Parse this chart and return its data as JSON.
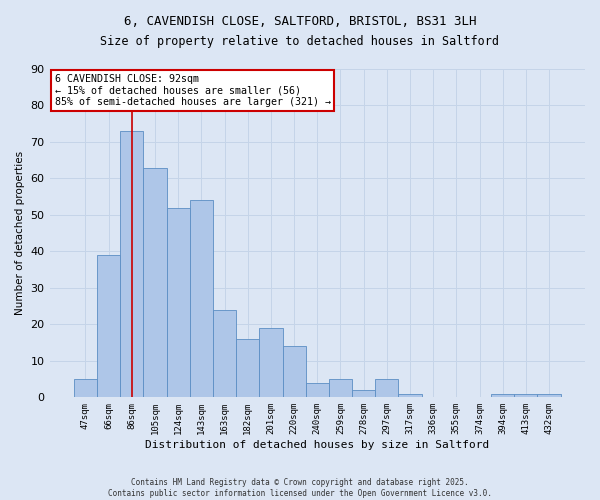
{
  "title_line1": "6, CAVENDISH CLOSE, SALTFORD, BRISTOL, BS31 3LH",
  "title_line2": "Size of property relative to detached houses in Saltford",
  "xlabel": "Distribution of detached houses by size in Saltford",
  "ylabel": "Number of detached properties",
  "categories": [
    "47sqm",
    "66sqm",
    "86sqm",
    "105sqm",
    "124sqm",
    "143sqm",
    "163sqm",
    "182sqm",
    "201sqm",
    "220sqm",
    "240sqm",
    "259sqm",
    "278sqm",
    "297sqm",
    "317sqm",
    "336sqm",
    "355sqm",
    "374sqm",
    "394sqm",
    "413sqm",
    "432sqm"
  ],
  "values": [
    5,
    39,
    73,
    63,
    52,
    54,
    24,
    16,
    19,
    14,
    4,
    5,
    2,
    5,
    1,
    0,
    0,
    0,
    1,
    1,
    1
  ],
  "bar_color": "#aec6e8",
  "bar_edge_color": "#5b8ec4",
  "vline_index": 2,
  "vline_color": "#cc0000",
  "annotation_text": "6 CAVENDISH CLOSE: 92sqm\n← 15% of detached houses are smaller (56)\n85% of semi-detached houses are larger (321) →",
  "annotation_box_color": "#ffffff",
  "annotation_box_edge": "#cc0000",
  "grid_color": "#c5d4e8",
  "background_color": "#dce6f4",
  "ylim": [
    0,
    90
  ],
  "yticks": [
    0,
    10,
    20,
    30,
    40,
    50,
    60,
    70,
    80,
    90
  ],
  "footer_line1": "Contains HM Land Registry data © Crown copyright and database right 2025.",
  "footer_line2": "Contains public sector information licensed under the Open Government Licence v3.0."
}
